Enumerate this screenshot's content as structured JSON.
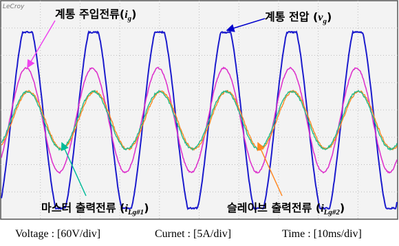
{
  "logo": "LeCroy",
  "labels": [
    {
      "prefix": "계통 주입전류(",
      "symbol": "i",
      "sub": "g",
      "suffix": ")"
    },
    {
      "prefix": "계통 전압 (",
      "symbol": "v",
      "sub": "g",
      "suffix": ")"
    },
    {
      "prefix": "마스터 출력전류 (",
      "symbol": "i",
      "sub": "Lg#1",
      "suffix": ")"
    },
    {
      "prefix": "슬레이브 출력전류 (",
      "symbol": "i",
      "sub": "Lg#2",
      "suffix": ")"
    }
  ],
  "caption": [
    "Voltage : [60V/div]",
    "Curnet : [5A/div]",
    "Time : [10ms/div]"
  ]
}
